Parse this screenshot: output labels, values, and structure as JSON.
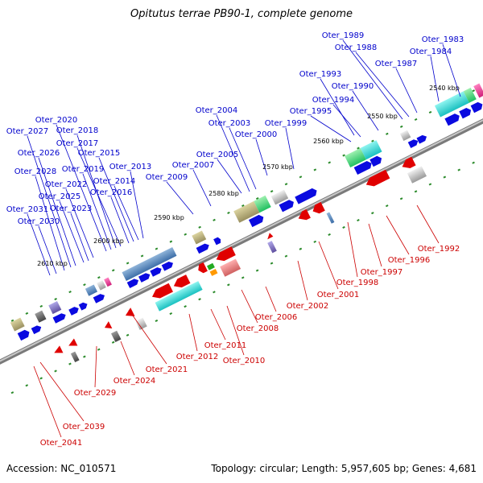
{
  "title": "Opitutus terrae PB90-1, complete genome",
  "accession_text": "Accession: NC_010571",
  "topology_text": "Topology: circular; Length: 5,957,605 bp; Genes: 4,681",
  "colors": {
    "forward_label": "#0000cc",
    "reverse_label": "#cc0000",
    "backbone": "#888888",
    "tick": "#2a8a2a"
  },
  "position_labels": [
    "2540 kbp",
    "2550 kbp",
    "2560 kbp",
    "2570 kbp",
    "2580 kbp",
    "2590 kbp",
    "2600 kbp",
    "2610 kbp"
  ],
  "forward_gene_labels": [
    "Oter_1983",
    "Oter_1984",
    "Oter_1987",
    "Oter_1988",
    "Oter_1989",
    "Oter_1990",
    "Oter_1993",
    "Oter_1994",
    "Oter_1995",
    "Oter_1999",
    "Oter_2000",
    "Oter_2003",
    "Oter_2004",
    "Oter_2005",
    "Oter_2007",
    "Oter_2009",
    "Oter_2013",
    "Oter_2014",
    "Oter_2015",
    "Oter_2016",
    "Oter_2017",
    "Oter_2018",
    "Oter_2019",
    "Oter_2020",
    "Oter_2022",
    "Oter_2023",
    "Oter_2025",
    "Oter_2026",
    "Oter_2027",
    "Oter_2028",
    "Oter_2030",
    "Oter_2031"
  ],
  "reverse_gene_labels": [
    "Oter_1992",
    "Oter_1996",
    "Oter_1997",
    "Oter_1998",
    "Oter_2001",
    "Oter_2002",
    "Oter_2006",
    "Oter_2008",
    "Oter_2010",
    "Oter_2011",
    "Oter_2012",
    "Oter_2021",
    "Oter_2024",
    "Oter_2029",
    "Oter_2039",
    "Oter_2041"
  ]
}
